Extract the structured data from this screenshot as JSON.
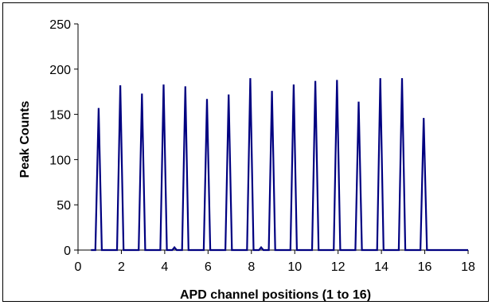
{
  "chart_data": {
    "type": "line",
    "xlabel": "APD channel positions (1 to 16)",
    "ylabel": "Peak Counts",
    "xlim": [
      0,
      18
    ],
    "ylim": [
      0,
      250
    ],
    "xticks": [
      "0",
      "2",
      "4",
      "6",
      "8",
      "10",
      "12",
      "14",
      "16",
      "18"
    ],
    "yticks": [
      "0",
      "50",
      "100",
      "150",
      "200",
      "250"
    ],
    "grid": false,
    "legend": "none",
    "line_color": "#000080",
    "series": [
      {
        "x": [
          0.6,
          0.8,
          0.95,
          1.1,
          1.6,
          1.8,
          1.95,
          2.1,
          2.6,
          2.8,
          2.95,
          3.1,
          3.6,
          3.8,
          3.95,
          4.1,
          4.35,
          4.45,
          4.55,
          4.8,
          4.95,
          5.1,
          5.6,
          5.8,
          5.95,
          6.1,
          6.6,
          6.8,
          6.95,
          7.1,
          7.6,
          7.8,
          7.95,
          8.1,
          8.35,
          8.45,
          8.55,
          8.8,
          8.95,
          9.1,
          9.6,
          9.8,
          9.95,
          10.1,
          10.6,
          10.8,
          10.95,
          11.1,
          11.6,
          11.8,
          11.95,
          12.1,
          12.6,
          12.8,
          12.95,
          13.1,
          13.6,
          13.8,
          13.95,
          14.1,
          14.6,
          14.8,
          14.95,
          15.1,
          15.6,
          15.8,
          15.95,
          16.1,
          16.6,
          18
        ],
        "y": [
          0,
          0,
          157,
          0,
          0,
          0,
          182,
          0,
          0,
          0,
          173,
          0,
          0,
          0,
          183,
          0,
          0,
          3,
          0,
          0,
          181,
          0,
          0,
          0,
          167,
          0,
          0,
          0,
          172,
          0,
          0,
          0,
          190,
          0,
          0,
          3,
          0,
          0,
          176,
          0,
          0,
          0,
          183,
          0,
          0,
          0,
          187,
          0,
          0,
          0,
          188,
          0,
          0,
          0,
          164,
          0,
          0,
          0,
          190,
          0,
          0,
          0,
          190,
          0,
          0,
          0,
          146,
          0,
          0,
          0
        ]
      }
    ]
  }
}
